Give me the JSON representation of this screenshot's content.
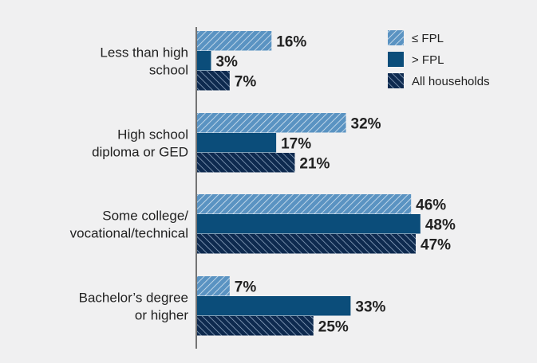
{
  "colors": {
    "background": "#f0f0f1",
    "fpl_below": "#4a87b8",
    "fpl_above": "#0b4d7a",
    "all_households": "#0e2a4f",
    "text": "#222222"
  },
  "chart_data": {
    "type": "bar",
    "orientation": "horizontal",
    "categories": [
      [
        "Less than high",
        "school"
      ],
      [
        "High school",
        "diploma or GED"
      ],
      [
        "Some college/",
        "vocational/technical"
      ],
      [
        "Bachelor’s degree",
        "or higher"
      ]
    ],
    "series": [
      {
        "name": "≤ FPL",
        "values": [
          16,
          32,
          46,
          7
        ],
        "color": "#4a87b8",
        "pattern": "hatch-light"
      },
      {
        "name": "> FPL",
        "values": [
          3,
          17,
          48,
          33
        ],
        "color": "#0b4d7a",
        "pattern": "solid"
      },
      {
        "name": "All households",
        "values": [
          7,
          21,
          47,
          25
        ],
        "color": "#0e2a4f",
        "pattern": "hatch-dark"
      }
    ],
    "value_suffix": "%",
    "legend_position": "top-right",
    "grid": false
  }
}
